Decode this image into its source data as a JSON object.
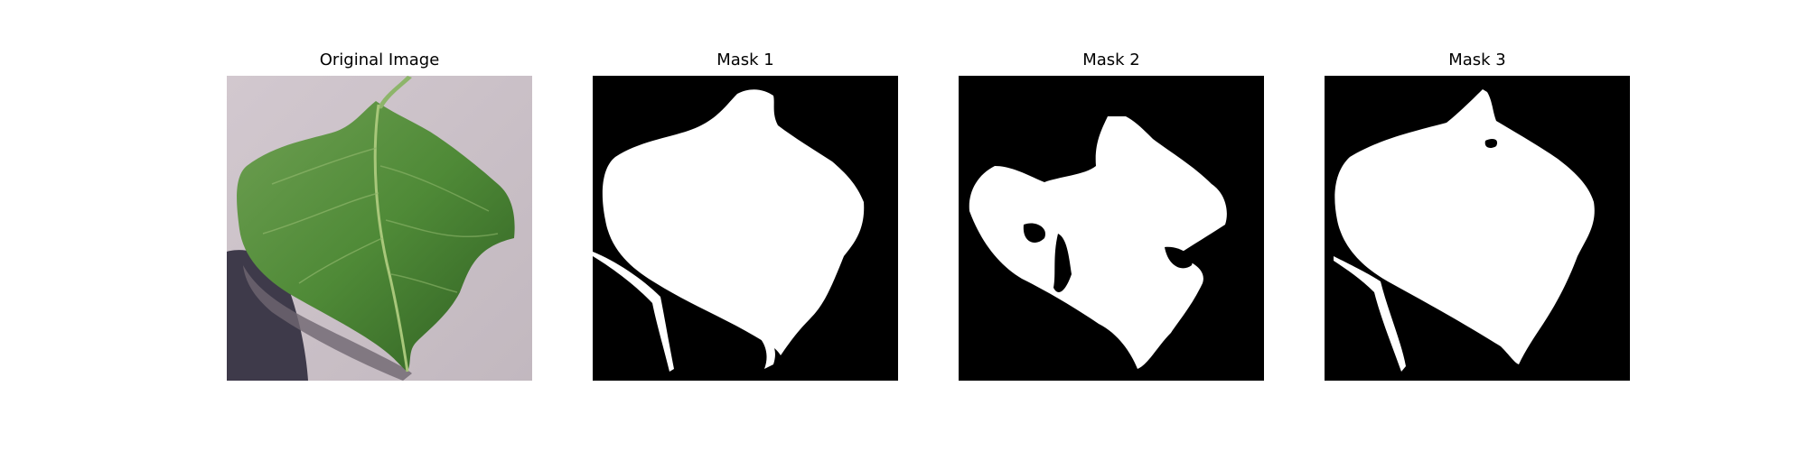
{
  "panels": [
    {
      "title": "Original Image"
    },
    {
      "title": "Mask 1"
    },
    {
      "title": "Mask 2"
    },
    {
      "title": "Mask 3"
    }
  ],
  "colors": {
    "background_photo": "#c9bfc6",
    "leaf_green": "#4f8a37",
    "leaf_dark": "#2f5f22",
    "vein": "#a8c77a",
    "shadow": "#3e3a4a",
    "mask_fg": "#ffffff",
    "mask_bg": "#000000"
  }
}
